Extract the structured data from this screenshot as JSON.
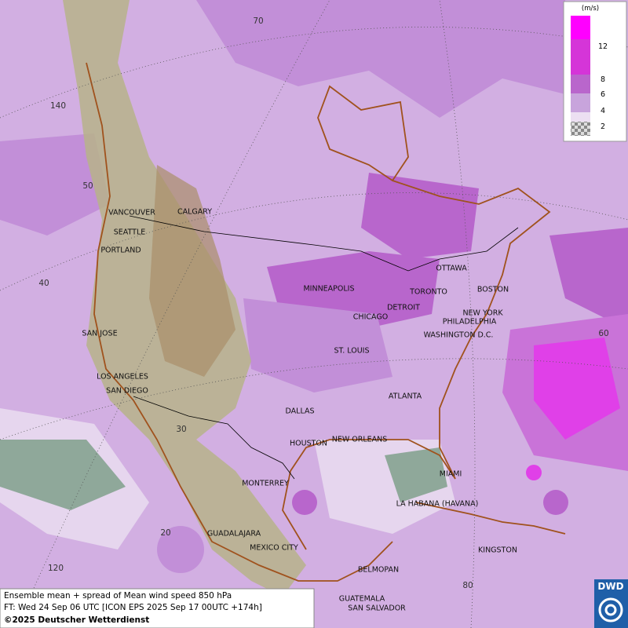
{
  "map": {
    "cities": [
      "VANCOUVER",
      "CALGARY",
      "SEATTLE",
      "PORTLAND",
      "MINNEAPOLIS",
      "OTTAWA",
      "TORONTO",
      "BOSTON",
      "DETROIT",
      "CHICAGO",
      "NEW YORK",
      "PHILADELPHIA",
      "WASHINGTON D.C.",
      "SAN JOSE",
      "ST. LOUIS",
      "LOS ANGELES",
      "SAN DIEGO",
      "ATLANTA",
      "DALLAS",
      "HOUSTON",
      "NEW ORLEANS",
      "MIAMI",
      "MONTERREY",
      "LA HABANA (HAVANA)",
      "GUADALAJARA",
      "MEXICO CITY",
      "KINGSTON",
      "BELMOPAN",
      "GUATEMALA",
      "SAN SALVADOR"
    ],
    "grid_labels": [
      70,
      140,
      50,
      40,
      60,
      30,
      20,
      120,
      80
    ]
  },
  "legend": {
    "unit": "(m/s)",
    "ticks": [
      12,
      8,
      6,
      4,
      2
    ]
  },
  "caption": {
    "lines": [
      "Ensemble mean + spread of Mean wind speed 850 hPa",
      "FT: Wed 24 Sep 06 UTC [ICON EPS 2025 Sep 17 00UTC +174h]",
      "©2025 Deutscher Wetterdienst"
    ]
  },
  "logo": "DWD"
}
